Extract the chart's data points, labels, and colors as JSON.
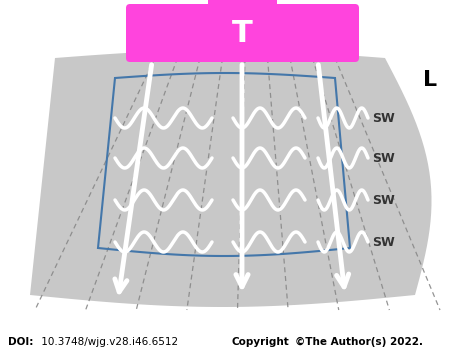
{
  "bg_color": "#c8c8c8",
  "transducer_color": "#ff44dd",
  "transducer_label": "T",
  "liver_label": "L",
  "blue_box_color": "#4477aa",
  "wave_color": "#ffffff",
  "arrow_color": "#ffffff",
  "dashed_line_color": "#888888",
  "sw_label_color": "#333333",
  "doi_bold": "DOI:",
  "doi_normal": " 10.3748/wjg.v28.i46.6512  ",
  "doi_copyright_bold": "Copyright",
  "doi_copyright_normal": "©The Author(s) 2022."
}
